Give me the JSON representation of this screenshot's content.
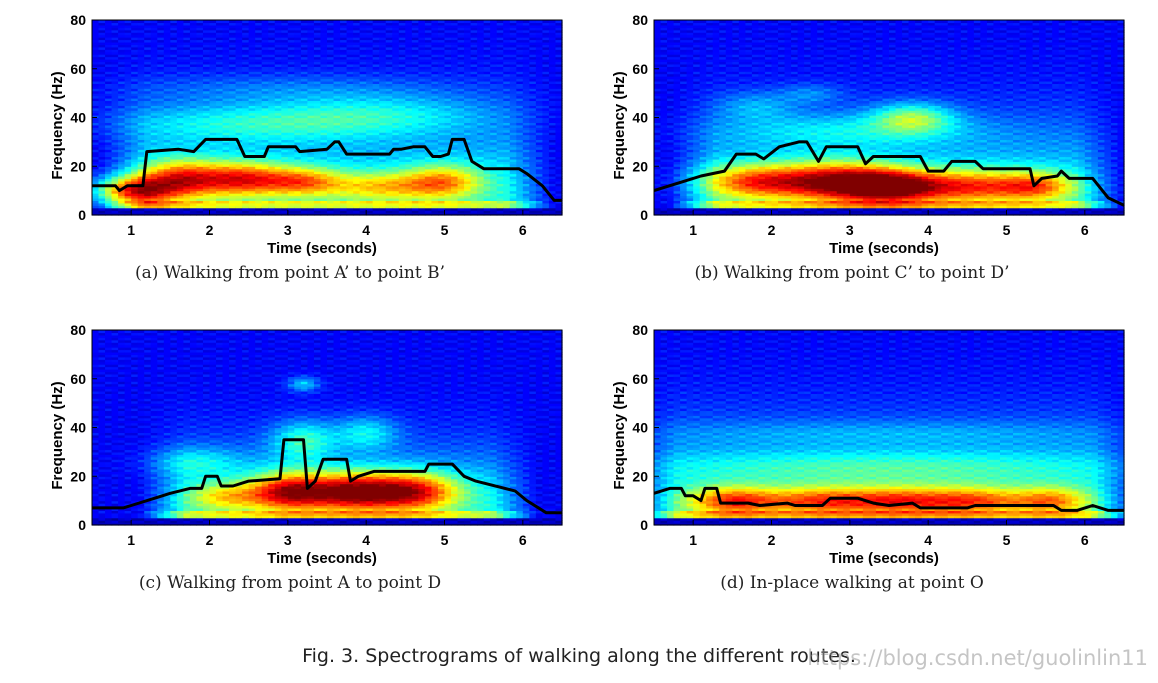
{
  "figure_caption": "Fig. 3.  Spectrograms of walking along the different routes.",
  "watermark": "https://blog.csdn.net/guolinlin11",
  "chart_data": [
    {
      "type": "heatmap",
      "caption": "(a)  Walking from point A’ to point B’",
      "xlabel": "Time (seconds)",
      "ylabel": "Frequency (Hz)",
      "xlim": [
        0.5,
        6.5
      ],
      "ylim": [
        0,
        80
      ],
      "xticks": [
        1,
        2,
        3,
        4,
        5,
        6
      ],
      "yticks": [
        0,
        20,
        40,
        60,
        80
      ],
      "colormap": "jet",
      "energy_blobs": [
        {
          "t": 1.0,
          "f": 10,
          "wt": 0.5,
          "wf": 6,
          "a": 0.55
        },
        {
          "t": 1.6,
          "f": 15,
          "wt": 0.5,
          "wf": 8,
          "a": 0.45
        },
        {
          "t": 2.4,
          "f": 15,
          "wt": 0.6,
          "wf": 7,
          "a": 0.5
        },
        {
          "t": 3.2,
          "f": 14,
          "wt": 0.5,
          "wf": 6,
          "a": 0.35
        },
        {
          "t": 4.2,
          "f": 12,
          "wt": 0.7,
          "wf": 6,
          "a": 0.3
        },
        {
          "t": 5.0,
          "f": 14,
          "wt": 0.5,
          "wf": 7,
          "a": 0.35
        },
        {
          "t": 2.6,
          "f": 38,
          "wt": 1.8,
          "wf": 8,
          "a": 0.18
        },
        {
          "t": 4.2,
          "f": 42,
          "wt": 1.4,
          "wf": 8,
          "a": 0.15
        },
        {
          "t": 3.0,
          "f": 52,
          "wt": 2.0,
          "wf": 6,
          "a": 0.08
        }
      ],
      "envelope": {
        "start": 1.0,
        "end": 6.0,
        "height": 38
      },
      "line": {
        "t": [
          0.5,
          0.8,
          0.85,
          0.95,
          1.15,
          1.2,
          1.6,
          1.8,
          1.95,
          2.35,
          2.45,
          2.7,
          2.75,
          3.1,
          3.15,
          3.5,
          3.6,
          3.65,
          3.75,
          3.85,
          4.3,
          4.35,
          4.45,
          4.6,
          4.75,
          4.85,
          4.95,
          5.05,
          5.1,
          5.25,
          5.35,
          5.5,
          5.95,
          6.05,
          6.25,
          6.4,
          6.5
        ],
        "f": [
          12,
          12,
          10,
          12,
          12,
          26,
          27,
          26,
          31,
          31,
          24,
          24,
          28,
          28,
          26,
          27,
          30,
          30,
          25,
          25,
          25,
          27,
          27,
          28,
          28,
          24,
          24,
          25,
          31,
          31,
          22,
          19,
          19,
          17,
          12,
          6,
          6
        ]
      }
    },
    {
      "type": "heatmap",
      "caption": "(b)  Walking from point C’ to point D’",
      "xlabel": "Time (seconds)",
      "ylabel": "Frequency (Hz)",
      "xlim": [
        0.5,
        6.5
      ],
      "ylim": [
        0,
        80
      ],
      "xticks": [
        1,
        2,
        3,
        4,
        5,
        6
      ],
      "yticks": [
        0,
        20,
        40,
        60,
        80
      ],
      "colormap": "jet",
      "energy_blobs": [
        {
          "t": 1.8,
          "f": 14,
          "wt": 0.7,
          "wf": 7,
          "a": 0.45
        },
        {
          "t": 2.8,
          "f": 14,
          "wt": 0.7,
          "wf": 8,
          "a": 0.55
        },
        {
          "t": 3.5,
          "f": 12,
          "wt": 0.6,
          "wf": 7,
          "a": 0.6
        },
        {
          "t": 4.5,
          "f": 12,
          "wt": 0.8,
          "wf": 7,
          "a": 0.45
        },
        {
          "t": 5.4,
          "f": 12,
          "wt": 0.5,
          "wf": 6,
          "a": 0.35
        },
        {
          "t": 3.8,
          "f": 40,
          "wt": 0.5,
          "wf": 6,
          "a": 0.3
        },
        {
          "t": 3.0,
          "f": 35,
          "wt": 1.6,
          "wf": 7,
          "a": 0.15
        },
        {
          "t": 1.8,
          "f": 45,
          "wt": 0.5,
          "wf": 6,
          "a": 0.12
        },
        {
          "t": 2.5,
          "f": 50,
          "wt": 0.4,
          "wf": 4,
          "a": 0.1
        }
      ],
      "envelope": {
        "start": 1.1,
        "end": 6.1,
        "height": 36
      },
      "line": {
        "t": [
          0.5,
          0.8,
          1.1,
          1.4,
          1.55,
          1.8,
          1.9,
          2.1,
          2.35,
          2.45,
          2.6,
          2.7,
          3.1,
          3.2,
          3.3,
          3.5,
          3.9,
          4.0,
          4.2,
          4.3,
          4.6,
          4.7,
          5.0,
          5.3,
          5.35,
          5.45,
          5.65,
          5.7,
          5.8,
          6.1,
          6.3,
          6.5
        ],
        "f": [
          10,
          13,
          16,
          18,
          25,
          25,
          23,
          28,
          30,
          30,
          22,
          28,
          28,
          21,
          24,
          24,
          24,
          18,
          18,
          22,
          22,
          19,
          19,
          19,
          12,
          15,
          16,
          18,
          15,
          15,
          7,
          4
        ]
      }
    },
    {
      "type": "heatmap",
      "caption": "(c)  Walking from point A to point D",
      "xlabel": "Time (seconds)",
      "ylabel": "Frequency (Hz)",
      "xlim": [
        0.5,
        6.5
      ],
      "ylim": [
        0,
        80
      ],
      "xticks": [
        1,
        2,
        3,
        4,
        5,
        6
      ],
      "yticks": [
        0,
        20,
        40,
        60,
        80
      ],
      "colormap": "jet",
      "energy_blobs": [
        {
          "t": 3.0,
          "f": 14,
          "wt": 0.5,
          "wf": 8,
          "a": 0.55
        },
        {
          "t": 3.8,
          "f": 14,
          "wt": 0.6,
          "wf": 8,
          "a": 0.6
        },
        {
          "t": 4.6,
          "f": 14,
          "wt": 0.6,
          "wf": 8,
          "a": 0.55
        },
        {
          "t": 2.2,
          "f": 12,
          "wt": 0.5,
          "wf": 6,
          "a": 0.3
        },
        {
          "t": 3.2,
          "f": 35,
          "wt": 0.4,
          "wf": 8,
          "a": 0.25
        },
        {
          "t": 4.0,
          "f": 38,
          "wt": 0.4,
          "wf": 7,
          "a": 0.2
        },
        {
          "t": 3.2,
          "f": 58,
          "wt": 0.2,
          "wf": 3,
          "a": 0.2
        },
        {
          "t": 1.8,
          "f": 26,
          "wt": 0.6,
          "wf": 6,
          "a": 0.15
        }
      ],
      "envelope": {
        "start": 1.5,
        "end": 5.8,
        "height": 30
      },
      "line": {
        "t": [
          0.5,
          0.9,
          1.0,
          1.3,
          1.5,
          1.75,
          1.9,
          1.95,
          2.1,
          2.15,
          2.3,
          2.5,
          2.9,
          2.95,
          3.2,
          3.25,
          3.35,
          3.45,
          3.75,
          3.8,
          3.9,
          4.1,
          4.75,
          4.8,
          5.1,
          5.25,
          5.4,
          5.9,
          6.05,
          6.2,
          6.3,
          6.5
        ],
        "f": [
          7,
          7,
          8,
          11,
          13,
          15,
          15,
          20,
          20,
          16,
          16,
          18,
          19,
          35,
          35,
          15,
          18,
          27,
          27,
          18,
          20,
          22,
          22,
          25,
          25,
          20,
          18,
          14,
          10,
          7,
          5,
          5
        ]
      }
    },
    {
      "type": "heatmap",
      "caption": "(d)  In-place walking at point O",
      "xlabel": "Time (seconds)",
      "ylabel": "Frequency (Hz)",
      "xlim": [
        0.5,
        6.5
      ],
      "ylim": [
        0,
        80
      ],
      "xticks": [
        1,
        2,
        3,
        4,
        5,
        6
      ],
      "yticks": [
        0,
        20,
        40,
        60,
        80
      ],
      "colormap": "jet",
      "energy_blobs": [
        {
          "t": 1.5,
          "f": 10,
          "wt": 0.6,
          "wf": 6,
          "a": 0.45
        },
        {
          "t": 2.6,
          "f": 10,
          "wt": 0.7,
          "wf": 6,
          "a": 0.4
        },
        {
          "t": 3.6,
          "f": 10,
          "wt": 0.7,
          "wf": 6,
          "a": 0.4
        },
        {
          "t": 4.6,
          "f": 10,
          "wt": 0.7,
          "wf": 6,
          "a": 0.4
        },
        {
          "t": 5.6,
          "f": 10,
          "wt": 0.5,
          "wf": 6,
          "a": 0.35
        },
        {
          "t": 3.5,
          "f": 24,
          "wt": 3.0,
          "wf": 7,
          "a": 0.15
        },
        {
          "t": 3.5,
          "f": 38,
          "wt": 3.0,
          "wf": 5,
          "a": 0.08
        }
      ],
      "envelope": {
        "start": 0.6,
        "end": 6.3,
        "height": 38
      },
      "line": {
        "t": [
          0.5,
          0.7,
          0.85,
          0.9,
          1.0,
          1.1,
          1.15,
          1.3,
          1.35,
          1.7,
          1.85,
          2.2,
          2.3,
          2.65,
          2.75,
          3.1,
          3.3,
          3.5,
          3.8,
          3.9,
          4.5,
          4.6,
          5.0,
          5.6,
          5.7,
          5.9,
          6.1,
          6.3,
          6.5
        ],
        "f": [
          13,
          15,
          15,
          12,
          12,
          10,
          15,
          15,
          9,
          9,
          8,
          9,
          8,
          8,
          11,
          11,
          9,
          8,
          9,
          7,
          7,
          8,
          8,
          8,
          6,
          6,
          8,
          6,
          6
        ]
      }
    }
  ]
}
